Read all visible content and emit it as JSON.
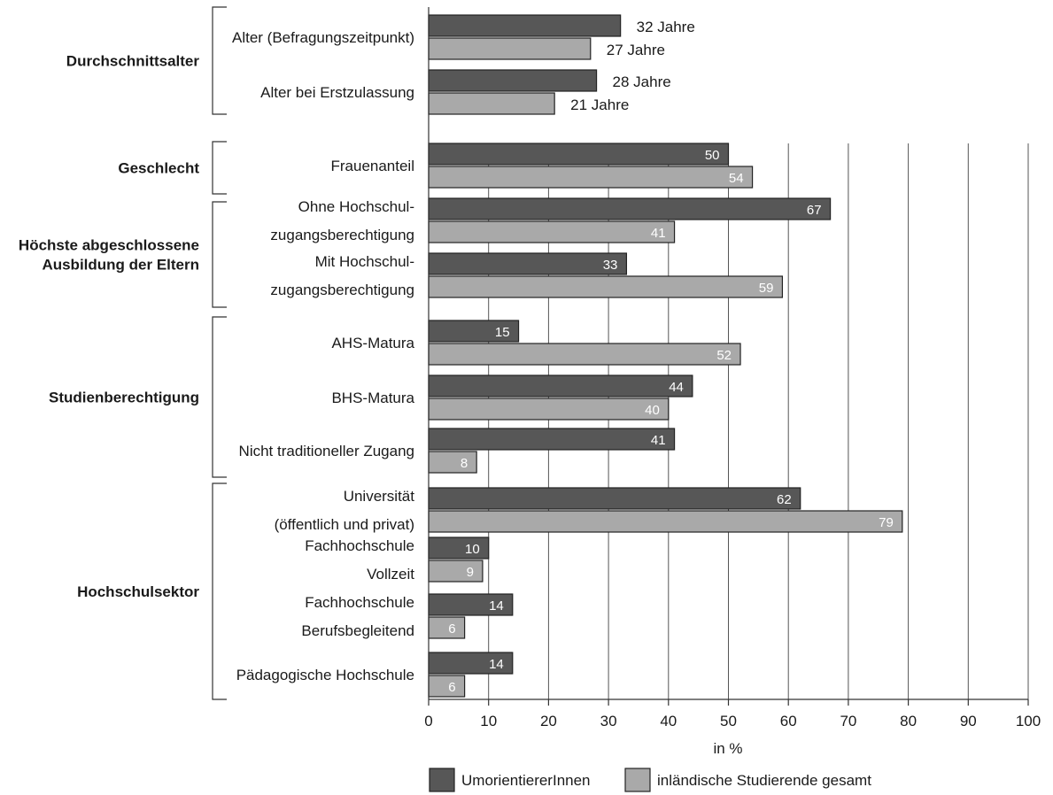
{
  "chart_data": {
    "type": "bar",
    "orientation": "horizontal",
    "xlabel": "in %",
    "xlim": [
      0,
      100
    ],
    "xticks": [
      "0",
      "10",
      "20",
      "30",
      "40",
      "50",
      "60",
      "70",
      "80",
      "90",
      "100"
    ],
    "legend_position": "bottom",
    "series": [
      {
        "name": "UmorientiererInnen",
        "color": "#575757"
      },
      {
        "name": "inländische Studierende gesamt",
        "color": "#a9a9a9"
      }
    ],
    "groups": [
      {
        "label": "Durchschnittsalter",
        "categories": [
          {
            "label": [
              "Alter (Befragungszeitpunkt)"
            ],
            "values": [
              32,
              27
            ],
            "value_labels": [
              "32 Jahre",
              "27 Jahre"
            ]
          },
          {
            "label": [
              "Alter bei Erstzulassung"
            ],
            "values": [
              28,
              21
            ],
            "value_labels": [
              "28 Jahre",
              "21 Jahre"
            ]
          }
        ]
      },
      {
        "label": "Geschlecht",
        "categories": [
          {
            "label": [
              "Frauenanteil"
            ],
            "values": [
              50,
              54
            ],
            "value_labels": [
              "50",
              "54"
            ]
          }
        ]
      },
      {
        "label": "Höchste abgeschlossene Ausbildung der Eltern",
        "label_lines": [
          "Höchste abgeschlossene",
          "Ausbildung der Eltern"
        ],
        "categories": [
          {
            "label": [
              "Ohne Hochschul-",
              "zugangsberechtigung"
            ],
            "values": [
              67,
              41
            ],
            "value_labels": [
              "67",
              "41"
            ]
          },
          {
            "label": [
              "Mit Hochschul-",
              "zugangsberechtigung"
            ],
            "values": [
              33,
              59
            ],
            "value_labels": [
              "33",
              "59"
            ]
          }
        ]
      },
      {
        "label": "Studienberechtigung",
        "categories": [
          {
            "label": [
              "AHS-Matura"
            ],
            "values": [
              15,
              52
            ],
            "value_labels": [
              "15",
              "52"
            ]
          },
          {
            "label": [
              "BHS-Matura"
            ],
            "values": [
              44,
              40
            ],
            "value_labels": [
              "44",
              "40"
            ]
          },
          {
            "label": [
              "Nicht traditioneller Zugang"
            ],
            "values": [
              41,
              8
            ],
            "value_labels": [
              "41",
              "8"
            ]
          }
        ]
      },
      {
        "label": "Hochschulsektor",
        "categories": [
          {
            "label": [
              "Universität",
              "(öffentlich und privat)"
            ],
            "values": [
              62,
              79
            ],
            "value_labels": [
              "62",
              "79"
            ]
          },
          {
            "label": [
              "Fachhochschule",
              "Vollzeit"
            ],
            "values": [
              10,
              9
            ],
            "value_labels": [
              "10",
              "9"
            ]
          },
          {
            "label": [
              "Fachhochschule",
              "Berufsbegleitend"
            ],
            "values": [
              14,
              6
            ],
            "value_labels": [
              "14",
              "6"
            ]
          },
          {
            "label": [
              "Pädagogische Hochschule"
            ],
            "values": [
              14,
              6
            ],
            "value_labels": [
              "14",
              "6"
            ]
          }
        ]
      }
    ]
  }
}
